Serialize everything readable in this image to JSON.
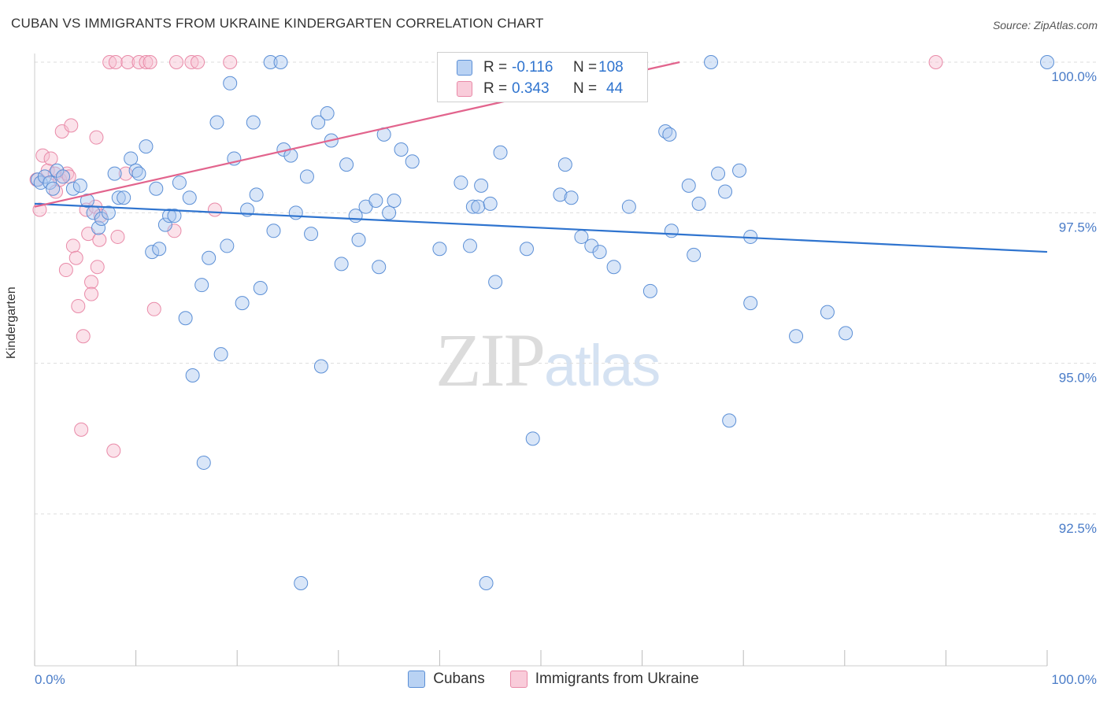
{
  "title": "CUBAN VS IMMIGRANTS FROM UKRAINE KINDERGARTEN CORRELATION CHART",
  "source": "Source: ZipAtlas.com",
  "watermark": {
    "zip": "ZIP",
    "atlas": "atlas"
  },
  "colors": {
    "blue_fill": "#aac8f0",
    "blue_stroke": "#5b8fd6",
    "blue_line": "#2f74cf",
    "pink_fill": "#f6bfd0",
    "pink_stroke": "#e98aa8",
    "pink_line": "#e2648d",
    "grid": "#dddddd",
    "tick_text": "#4a7cc8"
  },
  "legend": {
    "rows": [
      {
        "r_label": "R =",
        "r_value": "-0.116",
        "n_label": "N =",
        "n_value": "108"
      },
      {
        "r_label": "R =",
        "r_value": "0.343",
        "n_label": "N =",
        "n_value": "44"
      }
    ]
  },
  "bottom_legend": {
    "series1": "Cubans",
    "series2": "Immigrants from Ukraine"
  },
  "chart_data": {
    "type": "scatter",
    "title": "CUBAN VS IMMIGRANTS FROM UKRAINE KINDERGARTEN CORRELATION CHART",
    "xlabel": "",
    "ylabel": "Kindergarten",
    "xlim": [
      0,
      100
    ],
    "ylim": [
      90.2,
      100.15
    ],
    "x_tick_labels": [
      "0.0%",
      "100.0%"
    ],
    "y_ticks": [
      92.5,
      95.0,
      97.5,
      100.0
    ],
    "y_tick_labels": [
      "92.5%",
      "95.0%",
      "97.5%",
      "100.0%"
    ],
    "grid": true,
    "legend_position": "top-center",
    "series": [
      {
        "name": "Cubans",
        "r": -0.116,
        "n": 108,
        "trend": [
          [
            0,
            97.65
          ],
          [
            100,
            96.85
          ]
        ],
        "points": [
          [
            0.3,
            98.05
          ],
          [
            0.6,
            98.0
          ],
          [
            1.0,
            98.1
          ],
          [
            1.5,
            98.0
          ],
          [
            1.8,
            97.9
          ],
          [
            2.2,
            98.2
          ],
          [
            2.8,
            98.1
          ],
          [
            3.8,
            97.9
          ],
          [
            4.5,
            97.95
          ],
          [
            5.2,
            97.7
          ],
          [
            5.8,
            97.5
          ],
          [
            6.3,
            97.25
          ],
          [
            6.6,
            97.4
          ],
          [
            7.3,
            97.5
          ],
          [
            7.9,
            98.15
          ],
          [
            8.3,
            97.75
          ],
          [
            8.8,
            97.75
          ],
          [
            9.5,
            98.4
          ],
          [
            10.0,
            98.2
          ],
          [
            10.3,
            98.15
          ],
          [
            11.0,
            98.6
          ],
          [
            11.6,
            96.85
          ],
          [
            12.0,
            97.9
          ],
          [
            12.3,
            96.9
          ],
          [
            12.9,
            97.3
          ],
          [
            13.3,
            97.45
          ],
          [
            13.8,
            97.45
          ],
          [
            14.3,
            98.0
          ],
          [
            14.9,
            95.75
          ],
          [
            15.3,
            97.75
          ],
          [
            15.6,
            94.8
          ],
          [
            16.5,
            96.3
          ],
          [
            16.7,
            93.35
          ],
          [
            17.2,
            96.75
          ],
          [
            18.0,
            99.0
          ],
          [
            18.4,
            95.15
          ],
          [
            19.0,
            96.95
          ],
          [
            19.3,
            99.65
          ],
          [
            19.7,
            98.4
          ],
          [
            20.5,
            96.0
          ],
          [
            21.0,
            97.55
          ],
          [
            21.6,
            99.0
          ],
          [
            21.9,
            97.8
          ],
          [
            22.3,
            96.25
          ],
          [
            23.3,
            100.0
          ],
          [
            23.6,
            97.2
          ],
          [
            24.3,
            100.0
          ],
          [
            24.6,
            98.55
          ],
          [
            25.3,
            98.45
          ],
          [
            25.8,
            97.5
          ],
          [
            26.3,
            91.35
          ],
          [
            26.9,
            98.1
          ],
          [
            27.3,
            97.15
          ],
          [
            28.0,
            99.0
          ],
          [
            28.3,
            94.95
          ],
          [
            28.9,
            99.15
          ],
          [
            29.3,
            98.7
          ],
          [
            30.3,
            96.65
          ],
          [
            30.8,
            98.3
          ],
          [
            31.7,
            97.45
          ],
          [
            32.0,
            97.05
          ],
          [
            32.7,
            97.6
          ],
          [
            33.7,
            97.7
          ],
          [
            34.0,
            96.6
          ],
          [
            34.5,
            98.8
          ],
          [
            35.0,
            97.5
          ],
          [
            35.5,
            97.7
          ],
          [
            36.2,
            98.55
          ],
          [
            37.3,
            98.35
          ],
          [
            40.0,
            96.9
          ],
          [
            42.1,
            98.0
          ],
          [
            43.0,
            96.95
          ],
          [
            43.3,
            97.6
          ],
          [
            43.8,
            97.6
          ],
          [
            44.1,
            97.95
          ],
          [
            44.6,
            91.35
          ],
          [
            45.0,
            97.65
          ],
          [
            45.5,
            96.35
          ],
          [
            46.0,
            98.5
          ],
          [
            48.6,
            96.9
          ],
          [
            49.2,
            93.75
          ],
          [
            51.9,
            97.8
          ],
          [
            52.4,
            98.3
          ],
          [
            53.0,
            97.75
          ],
          [
            54.0,
            97.1
          ],
          [
            55.0,
            96.95
          ],
          [
            55.8,
            96.85
          ],
          [
            57.2,
            96.6
          ],
          [
            58.7,
            97.6
          ],
          [
            60.8,
            96.2
          ],
          [
            62.3,
            98.85
          ],
          [
            62.7,
            98.8
          ],
          [
            62.9,
            97.2
          ],
          [
            64.6,
            97.95
          ],
          [
            65.1,
            96.8
          ],
          [
            65.6,
            97.65
          ],
          [
            67.5,
            98.15
          ],
          [
            68.2,
            97.85
          ],
          [
            68.6,
            94.05
          ],
          [
            69.6,
            98.2
          ],
          [
            70.7,
            97.1
          ],
          [
            70.7,
            96.0
          ],
          [
            75.2,
            95.45
          ],
          [
            78.3,
            95.85
          ],
          [
            80.1,
            95.5
          ],
          [
            100.0,
            100.0
          ],
          [
            49.6,
            100.0
          ],
          [
            66.8,
            100.0
          ]
        ]
      },
      {
        "name": "Immigrants from Ukraine",
        "r": 0.343,
        "n": 44,
        "trend": [
          [
            0,
            97.6
          ],
          [
            63.7,
            100.0
          ]
        ],
        "points": [
          [
            0.2,
            98.05
          ],
          [
            0.5,
            97.55
          ],
          [
            0.8,
            98.45
          ],
          [
            1.3,
            98.2
          ],
          [
            1.6,
            98.4
          ],
          [
            2.0,
            98.15
          ],
          [
            2.1,
            97.85
          ],
          [
            2.5,
            98.05
          ],
          [
            2.7,
            98.85
          ],
          [
            3.2,
            98.15
          ],
          [
            3.4,
            98.1
          ],
          [
            3.1,
            96.55
          ],
          [
            3.6,
            98.95
          ],
          [
            3.8,
            96.95
          ],
          [
            4.1,
            96.75
          ],
          [
            4.3,
            95.95
          ],
          [
            4.6,
            93.9
          ],
          [
            4.8,
            95.45
          ],
          [
            5.1,
            97.55
          ],
          [
            5.3,
            97.15
          ],
          [
            5.6,
            96.35
          ],
          [
            5.6,
            96.15
          ],
          [
            6.0,
            97.6
          ],
          [
            6.1,
            98.75
          ],
          [
            6.2,
            96.6
          ],
          [
            6.4,
            97.05
          ],
          [
            6.5,
            97.45
          ],
          [
            7.4,
            100.0
          ],
          [
            7.8,
            93.55
          ],
          [
            8.0,
            100.0
          ],
          [
            8.2,
            97.1
          ],
          [
            9.0,
            98.15
          ],
          [
            9.2,
            100.0
          ],
          [
            10.3,
            100.0
          ],
          [
            11.0,
            100.0
          ],
          [
            11.4,
            100.0
          ],
          [
            11.8,
            95.9
          ],
          [
            13.8,
            97.2
          ],
          [
            14.0,
            100.0
          ],
          [
            15.5,
            100.0
          ],
          [
            16.1,
            100.0
          ],
          [
            17.8,
            97.55
          ],
          [
            19.3,
            100.0
          ],
          [
            89.0,
            100.0
          ]
        ]
      }
    ]
  }
}
